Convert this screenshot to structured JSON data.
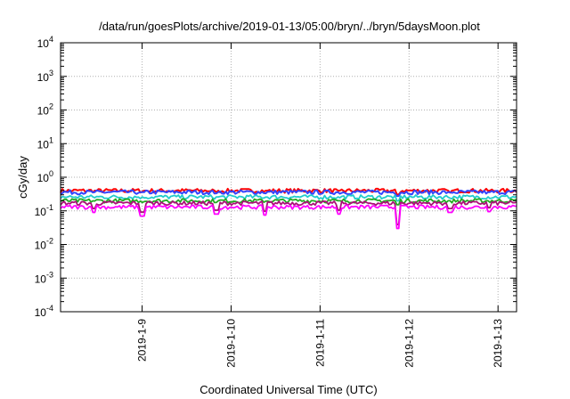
{
  "chart_data": {
    "type": "line",
    "title": "/data/run/goesPlots/archive/2019-01-13/05:00/bryn/../bryn/5daysMoon.plot",
    "xlabel": "Coordinated Universal Time (UTC)",
    "ylabel": "cGy/day",
    "y_scale": "log",
    "ylim": [
      0.0001,
      10000
    ],
    "y_ticks": [
      {
        "base": "10",
        "exp": "-4"
      },
      {
        "base": "10",
        "exp": "-3"
      },
      {
        "base": "10",
        "exp": "-2"
      },
      {
        "base": "10",
        "exp": "-1"
      },
      {
        "base": "10",
        "exp": "0"
      },
      {
        "base": "10",
        "exp": "1"
      },
      {
        "base": "10",
        "exp": "2"
      },
      {
        "base": "10",
        "exp": "3"
      },
      {
        "base": "10",
        "exp": "4"
      }
    ],
    "xlim": [
      "2019-01-08 02:00",
      "2019-01-13 05:00"
    ],
    "x_ticks": [
      "2019-1-9",
      "2019-1-10",
      "2019-1-11",
      "2019-1-12",
      "2019-1-13"
    ],
    "x_tick_dates": [
      "2019-01-09",
      "2019-01-10",
      "2019-01-11",
      "2019-01-12",
      "2019-01-13"
    ],
    "grid": true,
    "series": [
      {
        "color": "#ff0000",
        "level": 0.4
      },
      {
        "color": "#3344ff",
        "level": 0.36
      },
      {
        "color": "#22cccc",
        "level": 0.26
      },
      {
        "color": "#22aa22",
        "level": 0.2
      },
      {
        "color": "#aa1177",
        "level": 0.17
      },
      {
        "color": "#ff00ff",
        "level": 0.13
      }
    ],
    "dips": [
      {
        "date": "2019-01-08 11:00",
        "value": 0.09
      },
      {
        "date": "2019-01-09 00:00",
        "value": 0.07
      },
      {
        "date": "2019-01-09 20:00",
        "value": 0.08
      },
      {
        "date": "2019-01-10 09:00",
        "value": 0.075
      },
      {
        "date": "2019-01-11 05:00",
        "value": 0.08
      },
      {
        "date": "2019-01-11 21:00",
        "value": 0.03
      },
      {
        "date": "2019-01-12 11:00",
        "value": 0.09
      },
      {
        "date": "2019-01-12 21:30",
        "value": 0.095
      }
    ]
  }
}
